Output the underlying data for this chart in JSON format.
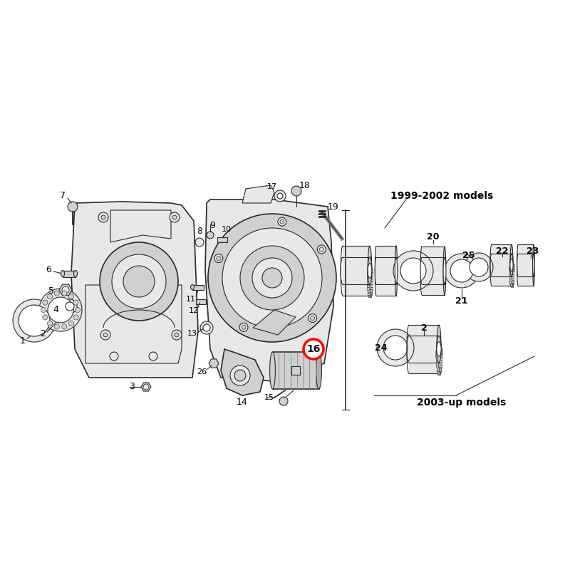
{
  "bg_color": "#ffffff",
  "fig_width": 8.0,
  "fig_height": 8.0,
  "dpi": 100,
  "label_16_circle_color": "#cc0000",
  "labels_1999_2002": "1999-2002 models",
  "labels_2003_up": "2003-up models",
  "lc": "#2a2a2a",
  "fill_light": "#e8e8e8",
  "fill_mid": "#d0d0d0",
  "fill_dark": "#b0b0b0",
  "fill_bearing": "#c8c8c8"
}
